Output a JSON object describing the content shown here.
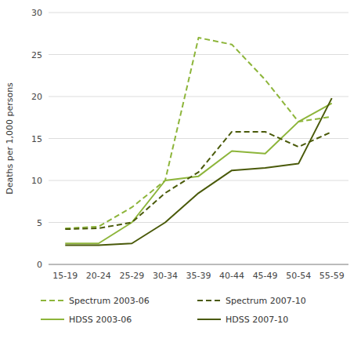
{
  "chart_data": {
    "type": "line",
    "categories": [
      "15-19",
      "20-24",
      "25-29",
      "30-34",
      "35-39",
      "40-44",
      "45-49",
      "50-54",
      "55-59"
    ],
    "series": [
      {
        "name": "Spectrum 2003-06",
        "color": "#8db53a",
        "line_style": "dashed",
        "values": [
          4.3,
          4.5,
          6.8,
          10.0,
          27.0,
          26.2,
          22.0,
          17.0,
          17.6
        ]
      },
      {
        "name": "HDSS 2003-06",
        "color": "#8db53a",
        "line_style": "solid",
        "values": [
          2.5,
          2.5,
          5.0,
          10.0,
          10.5,
          13.5,
          13.2,
          17.0,
          19.2
        ]
      },
      {
        "name": "Spectrum 2007-10",
        "color": "#4a5a0a",
        "line_style": "dashed",
        "values": [
          4.2,
          4.3,
          5.0,
          8.5,
          11.0,
          15.8,
          15.8,
          14.0,
          15.8
        ]
      },
      {
        "name": "HDSS 2007-10",
        "color": "#4a5a0a",
        "line_style": "solid",
        "values": [
          2.3,
          2.3,
          2.5,
          5.0,
          8.5,
          11.2,
          11.5,
          12.0,
          19.8
        ]
      }
    ],
    "ylabel": "Deaths per 1,000 persons",
    "ylim": [
      0,
      30
    ],
    "yticks": [
      0,
      5,
      10,
      15,
      20,
      25,
      30
    ],
    "grid": true,
    "legend": "bottom"
  }
}
